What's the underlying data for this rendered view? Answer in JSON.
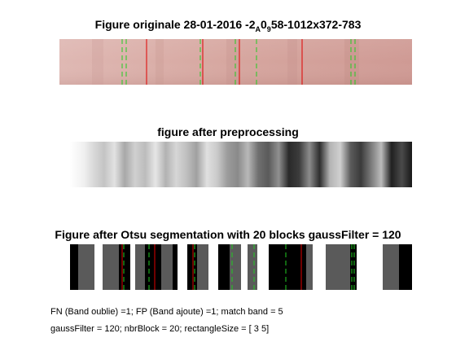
{
  "panels": [
    {
      "title_prefix": "Figure originale 28-01-2016 -2",
      "title_sub1": "A",
      "title_mid": "0",
      "title_sub2": "9",
      "title_suffix": "58-1012x372-783",
      "image": "strip photo",
      "colors": {
        "tissue": "#d9aaa5",
        "red_line": "#e00000",
        "green_line": "#22cc22"
      }
    },
    {
      "title": "figure after preprocessing",
      "image": "grayscale gradient strip"
    },
    {
      "title": "Figure after Otsu segmentation with 20 blocks gaussFilter = 120",
      "image": "binary block strip"
    }
  ],
  "notes": {
    "line1": "FN (Band oublie) =1; FP (Band ajoute) =1; match band = 5",
    "line2": "gaussFilter = 120; nbrBlock = 20; rectangleSize = [ 3  5]"
  }
}
